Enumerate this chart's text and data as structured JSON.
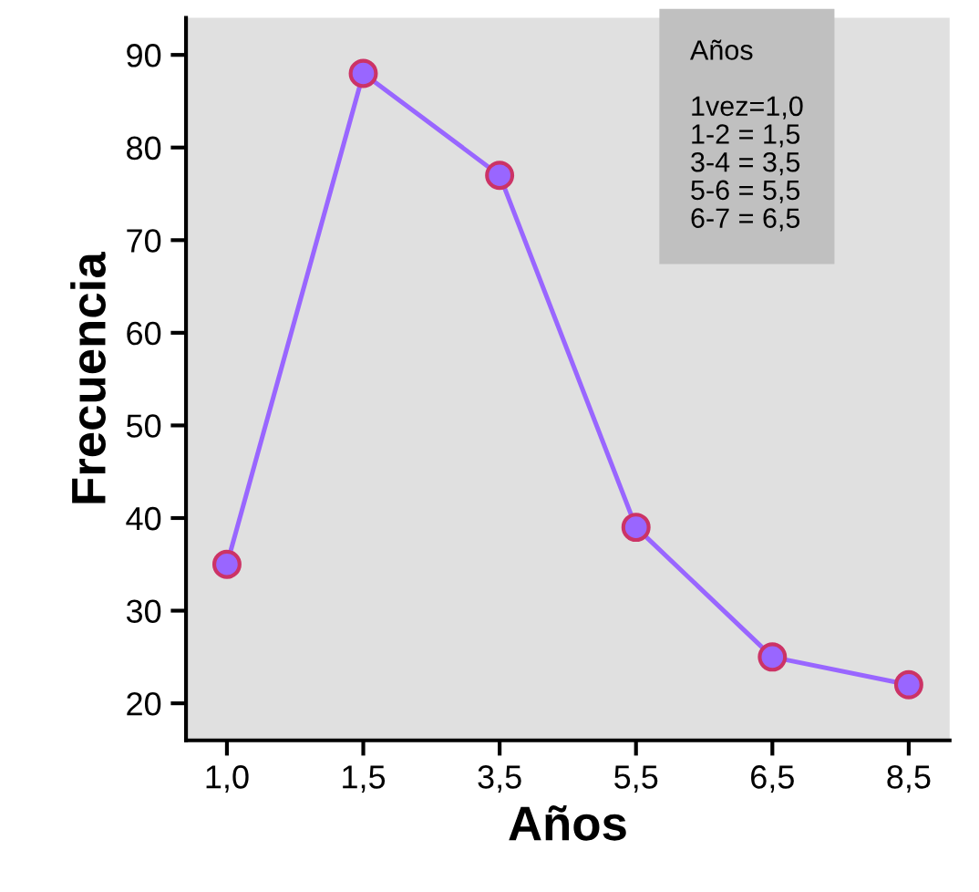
{
  "chart_data": {
    "type": "line",
    "xlabel": "Años",
    "ylabel": "Frecuencia",
    "categories": [
      "1,0",
      "1,5",
      "3,5",
      "5,5",
      "6,5",
      "8,5"
    ],
    "series": [
      {
        "color": "#9966ff",
        "values": [
          35,
          88,
          77,
          39,
          25,
          22
        ]
      }
    ],
    "marker": "circle",
    "line_style": "solid",
    "grid": false,
    "legend": false,
    "ylim": [
      16,
      94
    ],
    "yticks": [
      20,
      30,
      40,
      50,
      60,
      70,
      80,
      90
    ],
    "annotations": [
      "Años\n\n1vez=1,0\n1-2 = 1,5\n3-4 = 3,5\n5-6 = 5,5\n6-7 = 6,5"
    ]
  }
}
